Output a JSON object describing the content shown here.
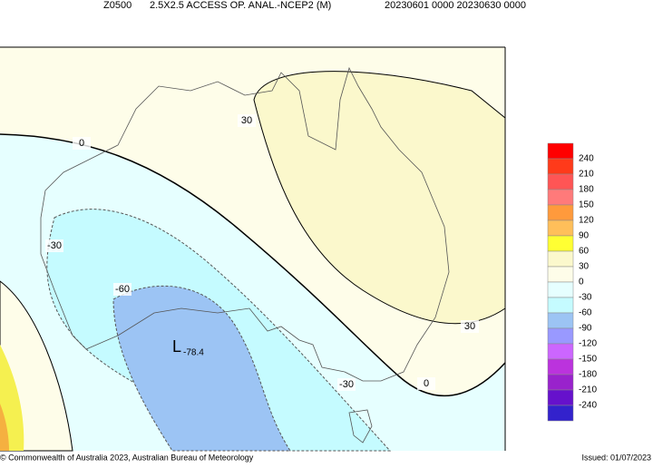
{
  "header": {
    "fields": [
      "Z0500",
      "2.5X2.5 ACCESS OP. ANAL.-NCEP2 (M)",
      "20230601 0000 20230630 0000"
    ]
  },
  "contour_labels": [
    "0",
    "0",
    "30",
    "30",
    "-30",
    "-30",
    "-60"
  ],
  "low": {
    "symbol": "L",
    "value": "-78.4"
  },
  "legend": {
    "labels": [
      240,
      210,
      180,
      150,
      120,
      90,
      60,
      30,
      0,
      -30,
      -60,
      -90,
      -120,
      -150,
      -180,
      -210,
      -240
    ],
    "colors": [
      "#ff0000",
      "#ff3a1a",
      "#ff5555",
      "#ff7a7a",
      "#ff9a3c",
      "#ffbf5a",
      "#ffff33",
      "#fbf8cc",
      "#fefde9",
      "#e6ffff",
      "#c5fbff",
      "#9cc4f4",
      "#9999ff",
      "#cc66ff",
      "#bb33dd",
      "#9922cc",
      "#6611cc",
      "#3322cc"
    ]
  },
  "footer": {
    "copyright": "© Commonwealth of Australia 2023, Australian Bureau of Meteorology",
    "issued": "Issued: 01/07/2023"
  }
}
